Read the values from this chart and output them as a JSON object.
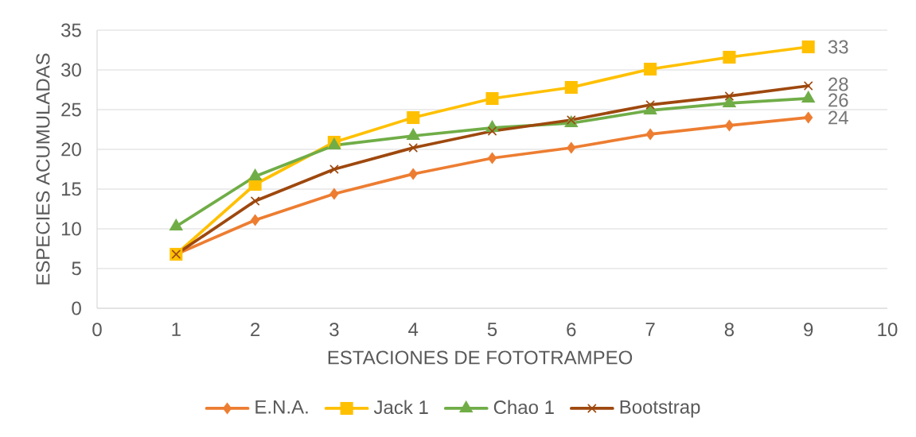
{
  "chart_data": {
    "type": "line",
    "xlabel": "ESTACIONES DE FOTOTRAMPEO",
    "ylabel": "ESPECIES ACUMULADAS",
    "x": [
      1,
      2,
      3,
      4,
      5,
      6,
      7,
      8,
      9
    ],
    "xlim": [
      0,
      10
    ],
    "xticks": [
      0,
      1,
      2,
      3,
      4,
      5,
      6,
      7,
      8,
      9,
      10
    ],
    "ylim": [
      0,
      35
    ],
    "yticks": [
      0,
      5,
      10,
      15,
      20,
      25,
      30,
      35
    ],
    "grid": "y",
    "legend": "bottom",
    "line_style": "solid",
    "series": [
      {
        "name": "E.N.A.",
        "color": "#ed7d31",
        "marker": "diamond",
        "values": [
          6.8,
          11.1,
          14.4,
          16.9,
          18.9,
          20.2,
          21.9,
          23.0,
          24.0
        ],
        "value_labels": [
          null,
          null,
          null,
          null,
          null,
          null,
          null,
          null,
          "24"
        ]
      },
      {
        "name": "Jack 1",
        "color": "#ffc000",
        "marker": "square",
        "values": [
          6.8,
          15.6,
          20.9,
          24.0,
          26.4,
          27.8,
          30.1,
          31.6,
          32.9
        ],
        "value_labels": [
          null,
          null,
          null,
          null,
          null,
          null,
          null,
          null,
          "33"
        ]
      },
      {
        "name": "Chao 1",
        "color": "#70ad47",
        "marker": "triangle",
        "values": [
          10.3,
          16.6,
          20.5,
          21.7,
          22.7,
          23.3,
          24.9,
          25.8,
          26.4
        ],
        "value_labels": [
          null,
          null,
          null,
          null,
          null,
          null,
          null,
          null,
          "26"
        ]
      },
      {
        "name": "Bootstrap",
        "color": "#9e480e",
        "marker": "cross",
        "values": [
          6.8,
          13.5,
          17.5,
          20.2,
          22.3,
          23.7,
          25.6,
          26.7,
          28.0
        ],
        "value_labels": [
          null,
          null,
          null,
          null,
          null,
          null,
          null,
          null,
          "28"
        ]
      }
    ]
  }
}
